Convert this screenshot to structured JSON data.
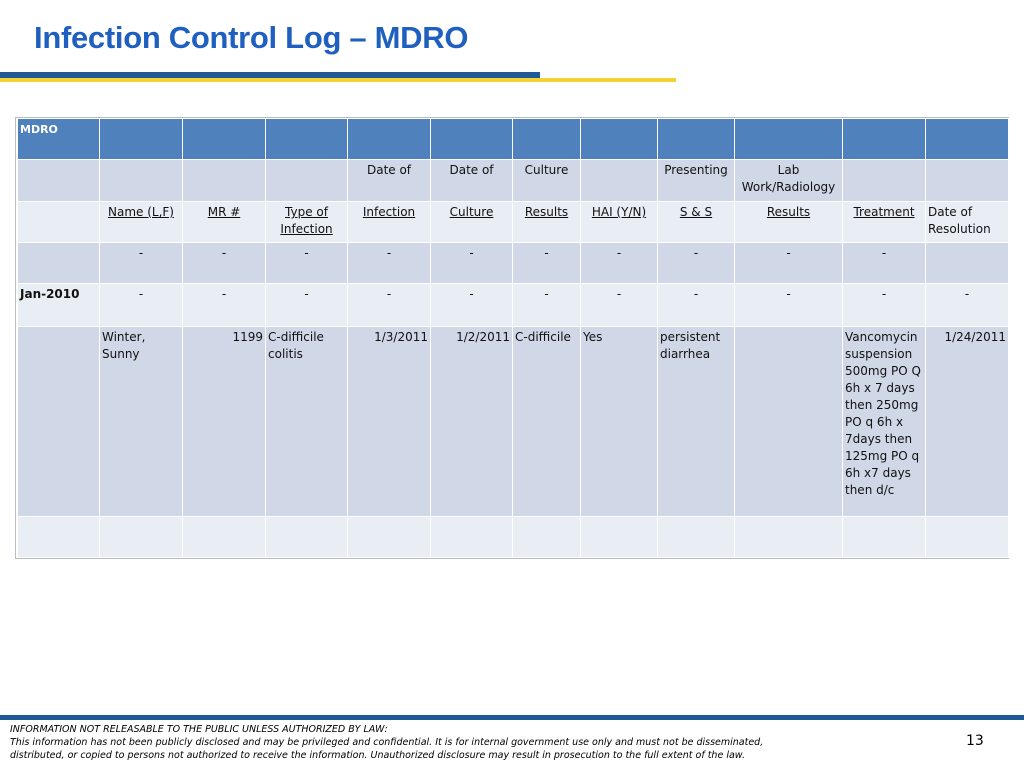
{
  "title": "Infection Control Log – MDRO",
  "table": {
    "corner_label": "MDRO",
    "header_row1": [
      "",
      "",
      "",
      "Date of",
      "Date of",
      "Culture",
      "",
      "Presenting",
      "Lab Work/Radiology",
      "",
      ""
    ],
    "header_row2": [
      "Name (L,F)",
      "MR #",
      "Type of Infection",
      "Infection",
      "Culture",
      "Results",
      "HAI (Y/N)",
      "S & S",
      "Results",
      "Treatment",
      "Date of Resolution"
    ],
    "dash_row1": [
      "-",
      "-",
      "-",
      "-",
      "-",
      "-",
      "-",
      "-",
      "-",
      "-"
    ],
    "month_label": "Jan-2010",
    "dash_row2": [
      "-",
      "-",
      "-",
      "-",
      "-",
      "-",
      "-",
      "-",
      "-",
      "-",
      "-"
    ],
    "entry": {
      "name": "Winter, Sunny",
      "mr": "1199",
      "type": "C-difficile colitis",
      "date_infection": "1/3/2011",
      "date_culture": "1/2/2011",
      "culture_results": "C-difficile",
      "hai": "Yes",
      "symptoms": "persistent diarrhea",
      "lab_results": "",
      "treatment": "Vancomycin suspension 500mg PO Q 6h x 7 days then 250mg PO q 6h x 7days then 125mg PO q 6h x7 days then d/c",
      "date_resolution": "1/24/2011"
    }
  },
  "footer": {
    "line1": "INFORMATION NOT RELEASABLE TO THE PUBLIC UNLESS AUTHORIZED BY LAW:",
    "line2": "This information has not been publicly disclosed and may be privileged and confidential.  It is for internal government use only and must not be disseminated,",
    "line3": "distributed, or copied to persons not authorized to receive the information.  Unauthorized disclosure may result in prosecution to the full extent of the law.",
    "page_number": "13"
  },
  "colors": {
    "title": "#1f5fbf",
    "header_fill": "#4f81bd",
    "row_fill": "#d0d8e8",
    "alt_row_fill": "#e9edf4",
    "rule_blue": "#1f5a96",
    "rule_yellow": "#f5d234"
  }
}
